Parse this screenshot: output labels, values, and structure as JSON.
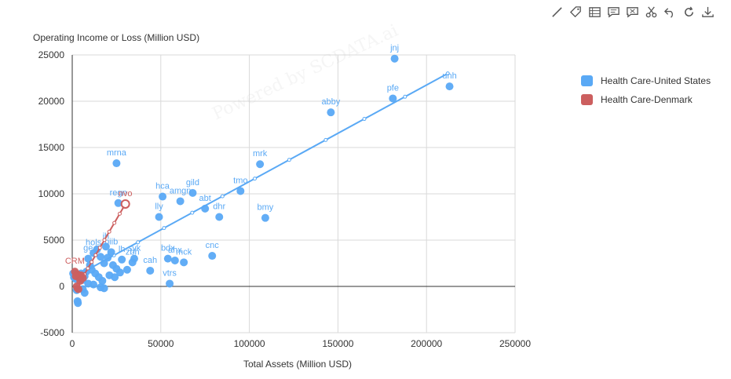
{
  "toolbar": {
    "icons": [
      "line-icon",
      "tag-icon",
      "table-icon",
      "comment-icon",
      "comment-remove-icon",
      "scissors-icon",
      "undo-icon",
      "refresh-icon",
      "download-icon"
    ]
  },
  "watermark": "Powered by SCDATA.ai",
  "legend": {
    "items": [
      {
        "label": "Health Care-United States",
        "color": "#5aa9f5"
      },
      {
        "label": "Health Care-Denmark",
        "color": "#cc5f5f"
      }
    ]
  },
  "chart_data": {
    "type": "scatter",
    "title": "",
    "xlabel": "Total Assets (Million USD)",
    "ylabel": "Operating Income or Loss (Million USD)",
    "xlim": [
      0,
      250000
    ],
    "ylim": [
      -5000,
      25000
    ],
    "xticks": [
      0,
      50000,
      100000,
      150000,
      200000,
      250000
    ],
    "yticks": [
      -5000,
      0,
      5000,
      10000,
      15000,
      20000,
      25000
    ],
    "grid": true,
    "legend_position": "right",
    "series": [
      {
        "name": "Health Care-United States",
        "color": "#5aa9f5",
        "trend": [
          [
            0,
            900
          ],
          [
            212000,
            23000
          ]
        ],
        "points": [
          {
            "x": 182000,
            "y": 24600,
            "label": "jnj"
          },
          {
            "x": 213000,
            "y": 21600,
            "label": "unh"
          },
          {
            "x": 181000,
            "y": 20300,
            "label": "pfe"
          },
          {
            "x": 146000,
            "y": 18800,
            "label": "abby"
          },
          {
            "x": 25000,
            "y": 13300,
            "label": "mrna"
          },
          {
            "x": 106000,
            "y": 13200,
            "label": "mrk"
          },
          {
            "x": 51000,
            "y": 9700,
            "label": "hca"
          },
          {
            "x": 68000,
            "y": 10100,
            "label": "gild"
          },
          {
            "x": 95000,
            "y": 10300,
            "label": "tmo"
          },
          {
            "x": 61000,
            "y": 9200,
            "label": "amgn"
          },
          {
            "x": 26000,
            "y": 9000,
            "label": "regn"
          },
          {
            "x": 75000,
            "y": 8400,
            "label": "abt"
          },
          {
            "x": 83000,
            "y": 7500,
            "label": "dhr"
          },
          {
            "x": 49000,
            "y": 7500,
            "label": "lly"
          },
          {
            "x": 109000,
            "y": 7400,
            "label": "bmy"
          },
          {
            "x": 79000,
            "y": 3300,
            "label": "cnc"
          },
          {
            "x": 54000,
            "y": 3000,
            "label": "bdx"
          },
          {
            "x": 58000,
            "y": 2800,
            "label": "ahx"
          },
          {
            "x": 63000,
            "y": 2600,
            "label": "mck"
          },
          {
            "x": 44000,
            "y": 1700,
            "label": "cah"
          },
          {
            "x": 55000,
            "y": 300,
            "label": "vtrs"
          },
          {
            "x": 35000,
            "y": 3000,
            "label": "syk"
          },
          {
            "x": 34000,
            "y": 2600,
            "label": "zbh"
          },
          {
            "x": 28000,
            "y": 2900,
            "label": "lh"
          },
          {
            "x": 22000,
            "y": 3700,
            "label": "biib"
          },
          {
            "x": 19000,
            "y": 4300,
            "label": "ih"
          },
          {
            "x": 12000,
            "y": 3600,
            "label": "hols"
          },
          {
            "x": 9000,
            "y": 3000,
            "label": "ge"
          },
          {
            "x": 14000,
            "y": 4000,
            "label": ""
          },
          {
            "x": 16000,
            "y": 3200,
            "label": ""
          },
          {
            "x": 18000,
            "y": 2500,
            "label": ""
          },
          {
            "x": 20000,
            "y": 3100,
            "label": ""
          },
          {
            "x": 23000,
            "y": 2300,
            "label": ""
          },
          {
            "x": 25000,
            "y": 1900,
            "label": ""
          },
          {
            "x": 27000,
            "y": 1500,
            "label": ""
          },
          {
            "x": 31000,
            "y": 1800,
            "label": ""
          },
          {
            "x": 10000,
            "y": 2300,
            "label": ""
          },
          {
            "x": 11000,
            "y": 1800,
            "label": ""
          },
          {
            "x": 13000,
            "y": 1400,
            "label": ""
          },
          {
            "x": 15000,
            "y": 1000,
            "label": ""
          },
          {
            "x": 17000,
            "y": 600,
            "label": ""
          },
          {
            "x": 8000,
            "y": 1600,
            "label": ""
          },
          {
            "x": 7000,
            "y": 1100,
            "label": ""
          },
          {
            "x": 6000,
            "y": 700,
            "label": ""
          },
          {
            "x": 5000,
            "y": 1400,
            "label": ""
          },
          {
            "x": 4000,
            "y": 900,
            "label": ""
          },
          {
            "x": 3000,
            "y": 1300,
            "label": ""
          },
          {
            "x": 2000,
            "y": 800,
            "label": ""
          },
          {
            "x": 1500,
            "y": 1400,
            "label": ""
          },
          {
            "x": 1000,
            "y": 1000,
            "label": ""
          },
          {
            "x": 500,
            "y": 1400,
            "label": ""
          },
          {
            "x": 9000,
            "y": 300,
            "label": ""
          },
          {
            "x": 12000,
            "y": 200,
            "label": ""
          },
          {
            "x": 16000,
            "y": -100,
            "label": ""
          },
          {
            "x": 18000,
            "y": -200,
            "label": ""
          },
          {
            "x": 6000,
            "y": -300,
            "label": ""
          },
          {
            "x": 7000,
            "y": -700,
            "label": ""
          },
          {
            "x": 3000,
            "y": -1600,
            "label": ""
          },
          {
            "x": 3200,
            "y": -1800,
            "label": ""
          },
          {
            "x": 2500,
            "y": -400,
            "label": ""
          },
          {
            "x": 21000,
            "y": 1200,
            "label": ""
          },
          {
            "x": 24000,
            "y": 1000,
            "label": ""
          }
        ]
      },
      {
        "name": "Health Care-Denmark",
        "color": "#cc5f5f",
        "trend": [
          [
            2000,
            -300
          ],
          [
            30000,
            8900
          ]
        ],
        "points": [
          {
            "x": 30000,
            "y": 8900,
            "label": "nvo"
          },
          {
            "x": 1500,
            "y": 1600,
            "label": "CRM"
          },
          {
            "x": 3000,
            "y": 1300,
            "label": ""
          },
          {
            "x": 4000,
            "y": 1000,
            "label": ""
          },
          {
            "x": 5000,
            "y": 1200,
            "label": ""
          },
          {
            "x": 6000,
            "y": 900,
            "label": ""
          },
          {
            "x": 2000,
            "y": 1100,
            "label": ""
          },
          {
            "x": 2500,
            "y": 0,
            "label": ""
          },
          {
            "x": 3500,
            "y": -300,
            "label": ""
          },
          {
            "x": 4500,
            "y": 600,
            "label": ""
          }
        ]
      }
    ]
  }
}
